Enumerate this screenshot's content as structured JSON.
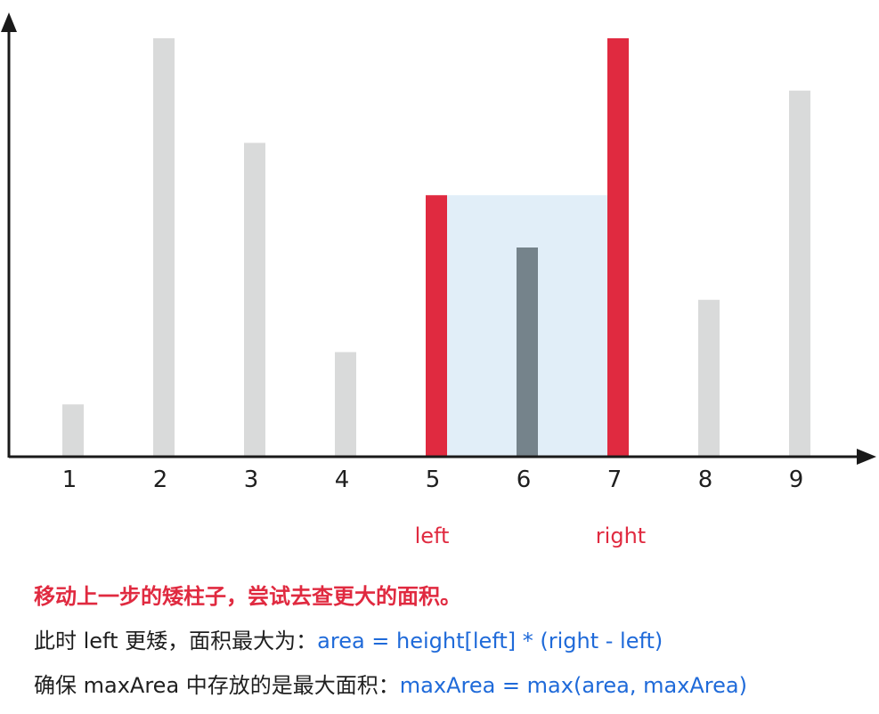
{
  "chart_data": {
    "type": "bar",
    "categories": [
      "1",
      "2",
      "3",
      "4",
      "5",
      "6",
      "7",
      "8",
      "9"
    ],
    "values": [
      1,
      8,
      6,
      2,
      5,
      4,
      8,
      3,
      7
    ],
    "ylim": [
      0,
      8
    ],
    "left_index": 4,
    "right_index": 6,
    "left_label": "left",
    "right_label": "right",
    "colors": {
      "default_bar": "#d9dada",
      "pointer_bar": "#e02a40",
      "inner_bar": "#75838b",
      "area": "#e1eef8",
      "axis": "#1a1a1a"
    }
  },
  "text": {
    "line1": "移动上一步的矮柱子，尝试去查更大的面积。",
    "line2_prefix": "此时 left 更矮，面积最大为：",
    "line2_code": "area = height[left] * (right - left)",
    "line3_prefix": "确保 maxArea 中存放的是最大面积：",
    "line3_code": "maxArea = max(area, maxArea)"
  }
}
